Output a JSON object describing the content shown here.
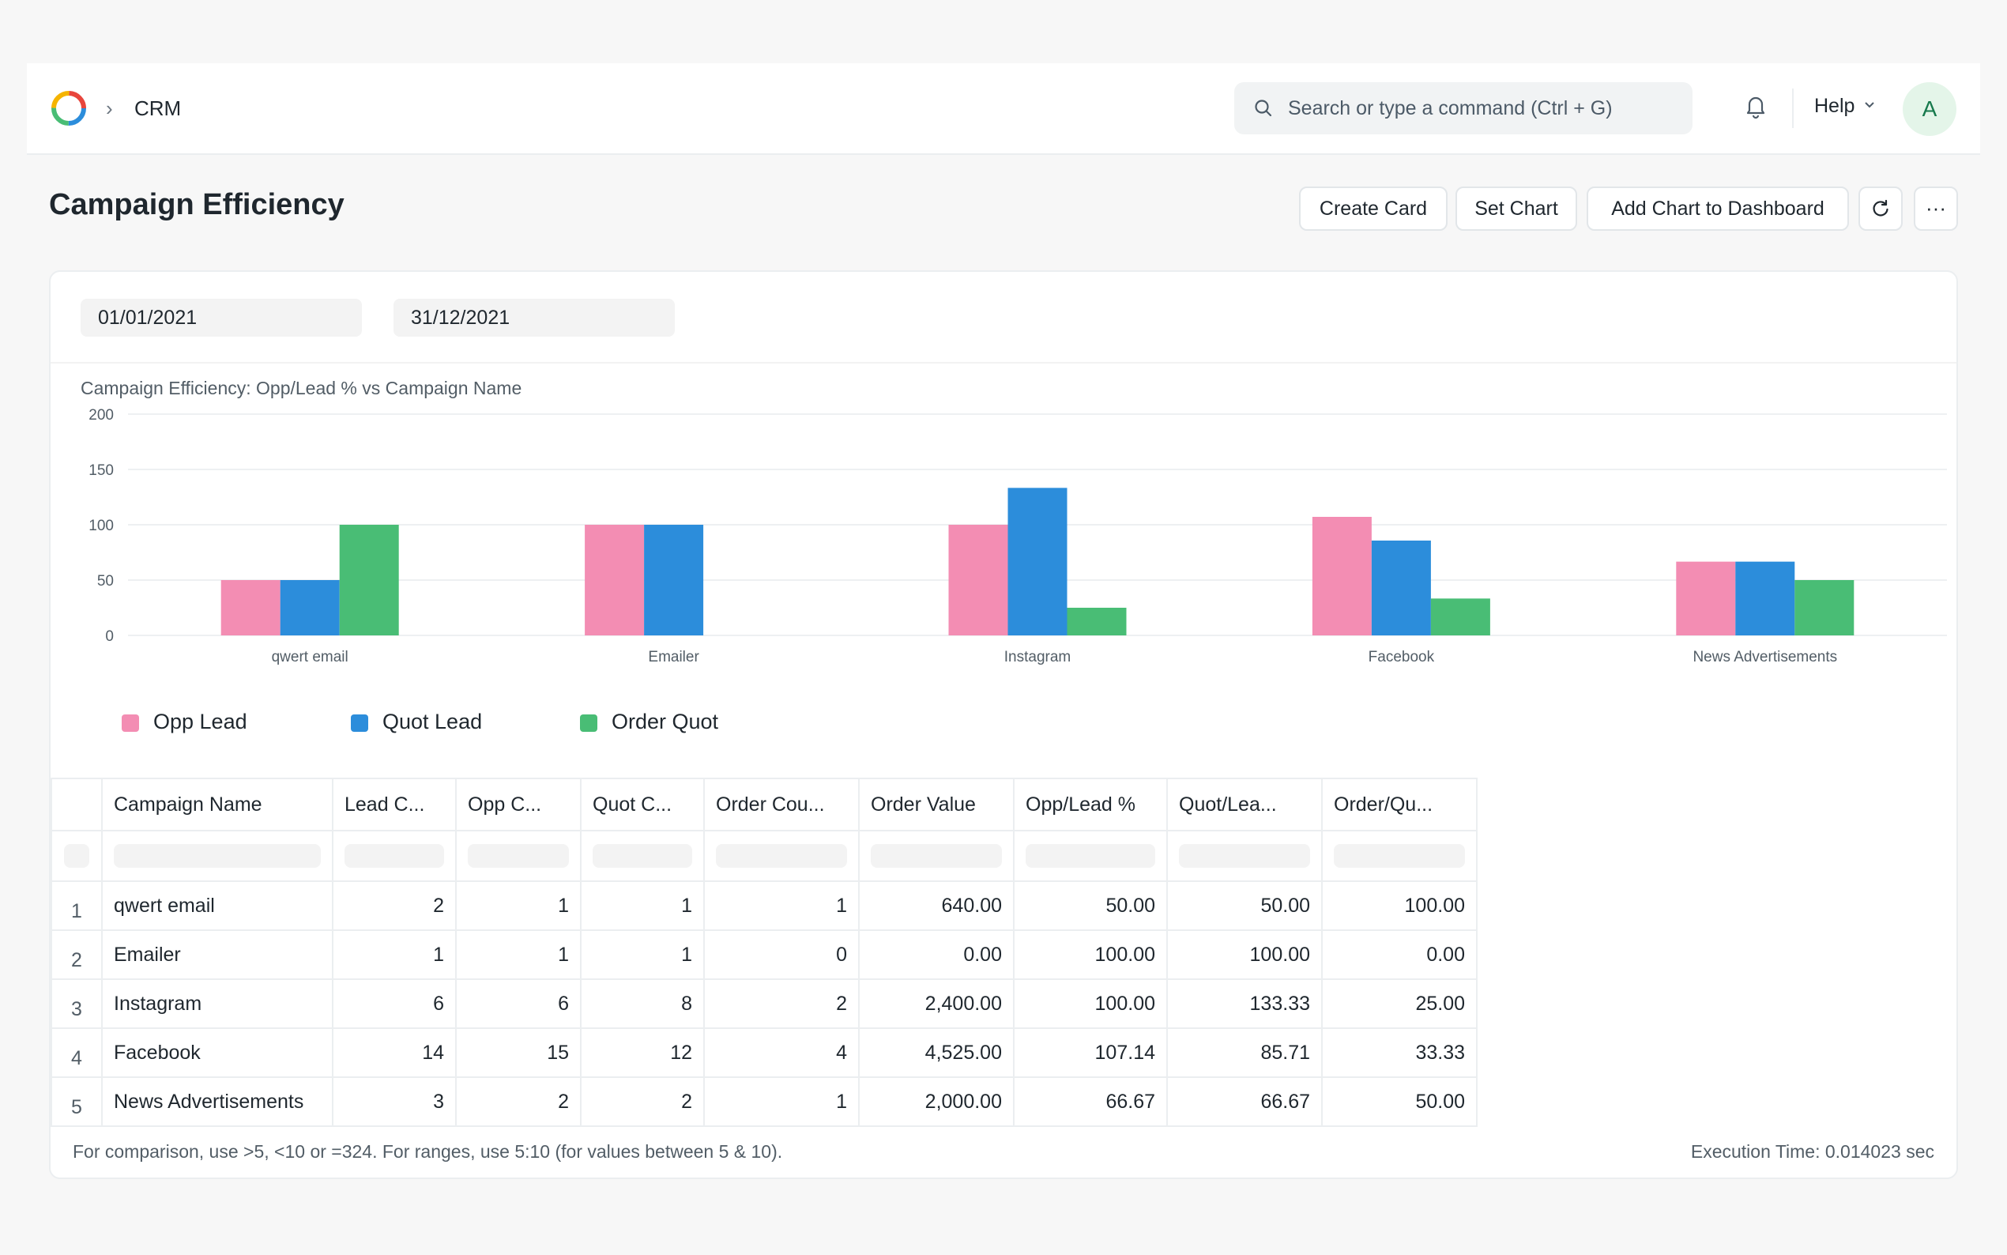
{
  "navbar": {
    "breadcrumb": "CRM",
    "search_placeholder": "Search or type a command (Ctrl + G)",
    "help_label": "Help",
    "avatar_initial": "A"
  },
  "page": {
    "title": "Campaign Efficiency",
    "actions": {
      "create_card": "Create Card",
      "set_chart": "Set Chart",
      "add_to_dashboard": "Add Chart to Dashboard"
    }
  },
  "filters": {
    "from_date": "01/01/2021",
    "to_date": "31/12/2021"
  },
  "chart_data": {
    "type": "bar",
    "title": "Campaign Efficiency: Opp/Lead % vs Campaign Name",
    "categories": [
      "qwert email",
      "Emailer",
      "Instagram",
      "Facebook",
      "News Advertisements"
    ],
    "series": [
      {
        "name": "Opp Lead",
        "color": "#f38db3",
        "values": [
          50,
          100,
          100,
          107.14,
          66.67
        ]
      },
      {
        "name": "Quot Lead",
        "color": "#2c8ddb",
        "values": [
          50,
          100,
          133.33,
          85.71,
          66.67
        ]
      },
      {
        "name": "Order Quot",
        "color": "#49bd75",
        "values": [
          100,
          0,
          25,
          33.33,
          50
        ]
      }
    ],
    "yticks": [
      0,
      50,
      100,
      150,
      200
    ],
    "ylim": [
      0,
      200
    ],
    "grid": true,
    "legend_position": "bottom-left"
  },
  "table": {
    "columns": [
      "Campaign Name",
      "Lead C...",
      "Opp C...",
      "Quot C...",
      "Order Cou...",
      "Order Value",
      "Opp/Lead %",
      "Quot/Lea...",
      "Order/Qu..."
    ],
    "rows": [
      {
        "index": "1",
        "cells": [
          "qwert email",
          "2",
          "1",
          "1",
          "1",
          "640.00",
          "50.00",
          "50.00",
          "100.00"
        ]
      },
      {
        "index": "2",
        "cells": [
          "Emailer",
          "1",
          "1",
          "1",
          "0",
          "0.00",
          "100.00",
          "100.00",
          "0.00"
        ]
      },
      {
        "index": "3",
        "cells": [
          "Instagram",
          "6",
          "6",
          "8",
          "2",
          "2,400.00",
          "100.00",
          "133.33",
          "25.00"
        ]
      },
      {
        "index": "4",
        "cells": [
          "Facebook",
          "14",
          "15",
          "12",
          "4",
          "4,525.00",
          "107.14",
          "85.71",
          "33.33"
        ]
      },
      {
        "index": "5",
        "cells": [
          "News Advertisements",
          "3",
          "2",
          "2",
          "1",
          "2,000.00",
          "66.67",
          "66.67",
          "50.00"
        ]
      }
    ]
  },
  "footer": {
    "hint": "For comparison, use >5, <10 or =324. For ranges, use 5:10 (for values between 5 & 10).",
    "execution_time": "Execution Time: 0.014023 sec"
  }
}
